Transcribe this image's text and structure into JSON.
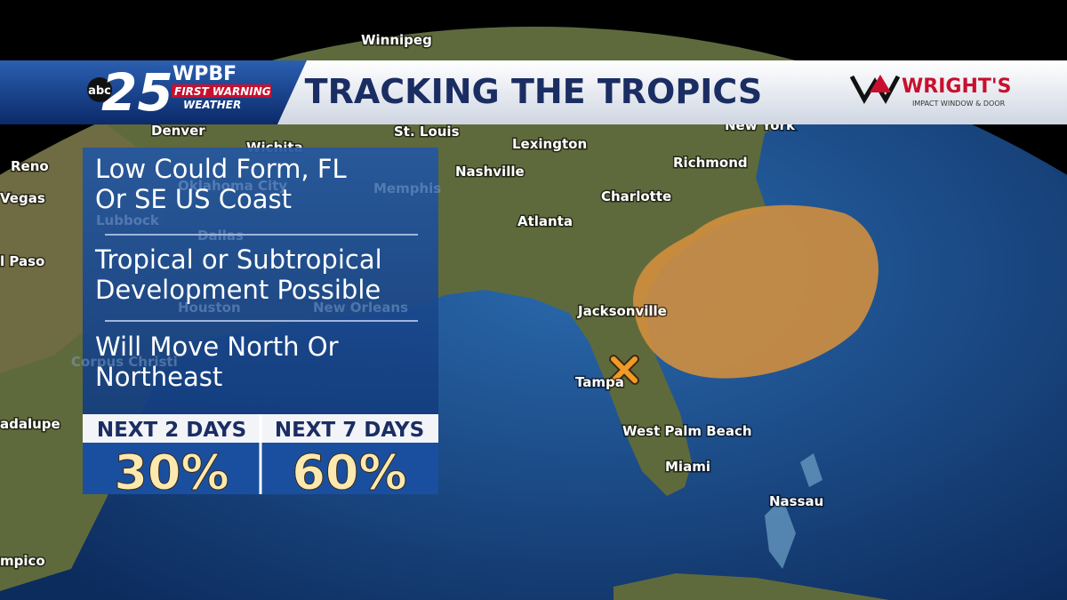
{
  "header": {
    "station": {
      "network": "abc",
      "channel": "25",
      "call_sign": "WPBF",
      "brand_line1": "FIRST WARNING",
      "brand_line2": "WEATHER"
    },
    "title": "TRACKING THE TROPICS",
    "sponsor": {
      "name": "WRIGHT'S",
      "tagline": "IMPACT WINDOW & DOOR"
    }
  },
  "panel": {
    "statements": [
      "Low Could Form, FL Or SE US Coast",
      "Tropical or Subtropical Development Possible",
      "Will Move North Or Northeast"
    ],
    "outlook": [
      {
        "label": "NEXT 2 DAYS",
        "chance": "30%"
      },
      {
        "label": "NEXT 7 DAYS",
        "chance": "60%"
      }
    ]
  },
  "map": {
    "cities": [
      "Winnipeg",
      "Denver",
      "Wichita",
      "St. Louis",
      "Lexington",
      "New York",
      "Reno",
      "Nashville",
      "Richmond",
      "Vegas",
      "Charlotte",
      "Atlanta",
      "l Paso",
      "Jacksonville",
      "Tampa",
      "adalupe",
      "West Palm Beach",
      "Miami",
      "Nassau",
      "mpico"
    ],
    "faint_cities": [
      "Oklahoma City",
      "Memphis",
      "Lubbock",
      "Dallas",
      "Houston",
      "New Orleans",
      "Corpus Christi"
    ]
  }
}
